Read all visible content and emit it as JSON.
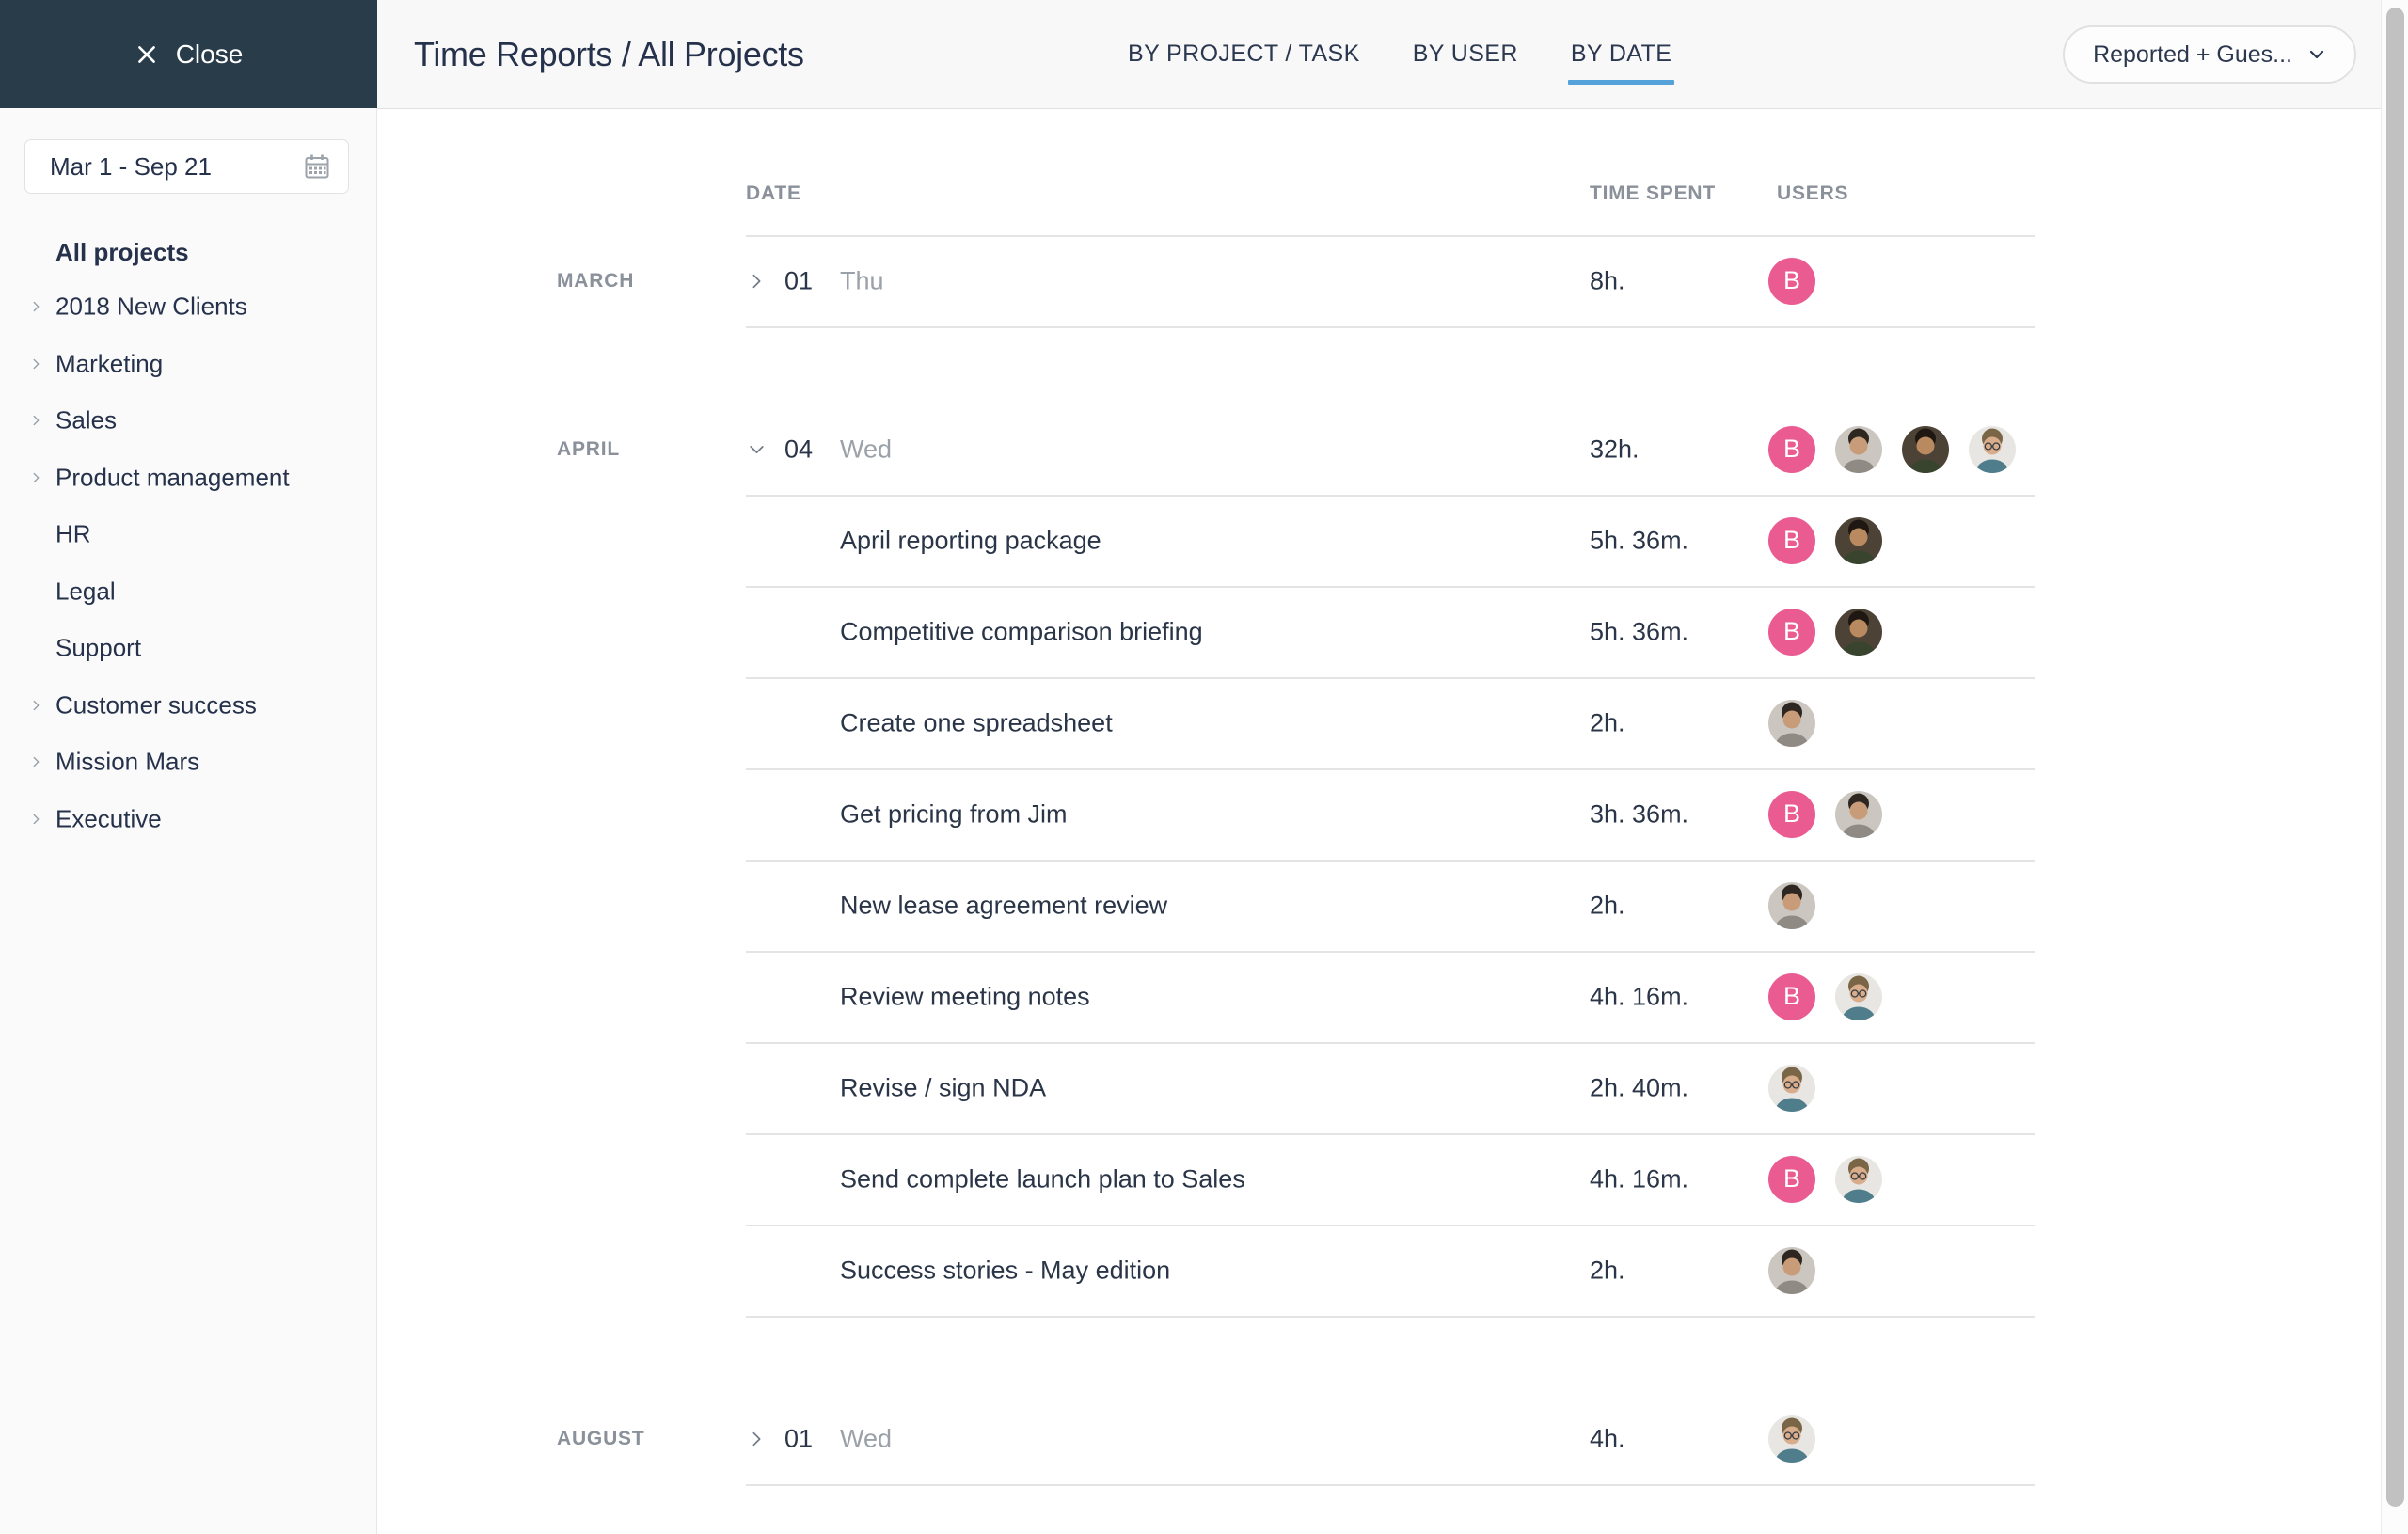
{
  "panel": {
    "close_label": "Close"
  },
  "header": {
    "title": "Time Reports / All Projects",
    "tabs": [
      {
        "label": "BY PROJECT / TASK",
        "active": false
      },
      {
        "label": "BY USER",
        "active": false
      },
      {
        "label": "BY DATE",
        "active": true
      }
    ],
    "filter_dropdown": {
      "label": "Reported + Gues..."
    }
  },
  "sidebar": {
    "date_range": "Mar 1 - Sep 21",
    "all_projects": "All projects",
    "projects": [
      {
        "label": "2018 New Clients",
        "expandable": true
      },
      {
        "label": "Marketing",
        "expandable": true
      },
      {
        "label": "Sales",
        "expandable": true
      },
      {
        "label": "Product management",
        "expandable": true
      },
      {
        "label": "HR",
        "expandable": false
      },
      {
        "label": "Legal",
        "expandable": false
      },
      {
        "label": "Support",
        "expandable": false
      },
      {
        "label": "Customer success",
        "expandable": true
      },
      {
        "label": "Mission Mars",
        "expandable": true
      },
      {
        "label": "Executive",
        "expandable": true
      }
    ]
  },
  "table": {
    "columns": {
      "date": "DATE",
      "time_spent": "TIME SPENT",
      "users": "USERS"
    },
    "groups": [
      {
        "month": "MARCH",
        "day": "01",
        "weekday": "Thu",
        "time": "8h.",
        "expanded": false,
        "avatars": [
          "b"
        ],
        "tasks": []
      },
      {
        "month": "APRIL",
        "day": "04",
        "weekday": "Wed",
        "time": "32h.",
        "expanded": true,
        "avatars": [
          "b",
          "man_beard",
          "woman",
          "man_glasses"
        ],
        "tasks": [
          {
            "name": "April reporting package",
            "time": "5h. 36m.",
            "avatars": [
              "b",
              "woman"
            ]
          },
          {
            "name": "Competitive comparison briefing",
            "time": "5h. 36m.",
            "avatars": [
              "b",
              "woman"
            ]
          },
          {
            "name": "Create one spreadsheet",
            "time": "2h.",
            "avatars": [
              "man_beard"
            ]
          },
          {
            "name": "Get pricing from Jim",
            "time": "3h. 36m.",
            "avatars": [
              "b",
              "man_beard"
            ]
          },
          {
            "name": "New lease agreement review",
            "time": "2h.",
            "avatars": [
              "man_beard"
            ]
          },
          {
            "name": "Review meeting notes",
            "time": "4h. 16m.",
            "avatars": [
              "b",
              "man_glasses"
            ]
          },
          {
            "name": "Revise / sign NDA",
            "time": "2h. 40m.",
            "avatars": [
              "man_glasses"
            ]
          },
          {
            "name": "Send complete launch plan to Sales",
            "time": "4h. 16m.",
            "avatars": [
              "b",
              "man_glasses"
            ]
          },
          {
            "name": "Success stories - May edition",
            "time": "2h.",
            "avatars": [
              "man_beard"
            ]
          }
        ]
      },
      {
        "month": "AUGUST",
        "day": "01",
        "weekday": "Wed",
        "time": "4h.",
        "expanded": false,
        "avatars": [
          "man_glasses"
        ],
        "tasks": []
      }
    ]
  },
  "avatar_defs": {
    "b": {
      "type": "initial",
      "label": "B",
      "bg": "#EA5B92",
      "fg": "#FFFFFF"
    },
    "man_beard": {
      "type": "photo",
      "bg": "#CBC6C0",
      "hair": "#2E2620",
      "skin": "#C89B79",
      "shirt": "#8F8A84",
      "glasses": false
    },
    "woman": {
      "type": "photo",
      "bg": "#4C4336",
      "hair": "#1F1812",
      "skin": "#B9895F",
      "shirt": "#39442F",
      "glasses": false
    },
    "man_glasses": {
      "type": "photo",
      "bg": "#E8E6E2",
      "hair": "#7A6647",
      "skin": "#D9AD8B",
      "shirt": "#4F7D8C",
      "glasses": true
    }
  },
  "colors": {
    "accent_blue": "#55A2DB",
    "avatar_pink": "#EA5B92",
    "header_dark": "#293C4A",
    "row_line": "#E4E4E4"
  }
}
